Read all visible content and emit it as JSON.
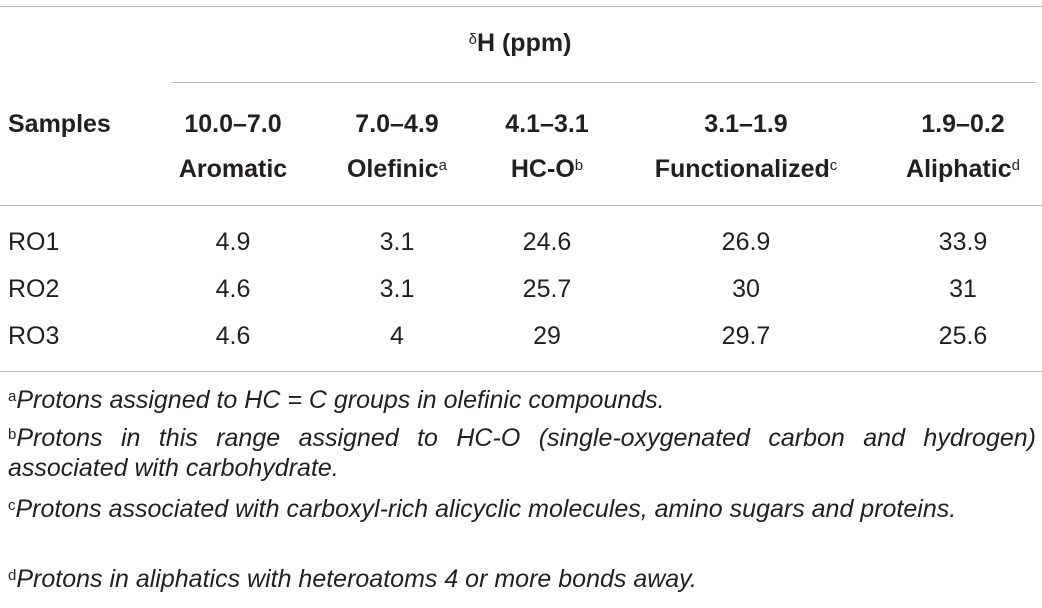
{
  "table": {
    "group_header": {
      "prefix": "δ",
      "label": "H (ppm)"
    },
    "samples_header": "Samples",
    "columns": [
      {
        "range": "10.0–7.0",
        "name": "Aromatic",
        "note": ""
      },
      {
        "range": "7.0–4.9",
        "name": "Olefinic",
        "note": "a"
      },
      {
        "range": "4.1–3.1",
        "name": "HC-O",
        "note": "b"
      },
      {
        "range": "3.1–1.9",
        "name": "Functionalized",
        "note": "c"
      },
      {
        "range": "1.9–0.2",
        "name": "Aliphatic",
        "note": "d"
      }
    ],
    "rows": [
      {
        "sample": "RO1",
        "values": [
          "4.9",
          "3.1",
          "24.6",
          "26.9",
          "33.9"
        ]
      },
      {
        "sample": "RO2",
        "values": [
          "4.6",
          "3.1",
          "25.7",
          "30",
          "31"
        ]
      },
      {
        "sample": "RO3",
        "values": [
          "4.6",
          "4",
          "29",
          "29.7",
          "25.6"
        ]
      }
    ]
  },
  "footnotes": [
    {
      "mark": "a",
      "text": "Protons assigned to HC = C groups in olefinic compounds."
    },
    {
      "mark": "b",
      "text": "Protons in this range assigned to HC-O (single-oxygenated carbon and hydrogen) associated with carbohydrate."
    },
    {
      "mark": "c",
      "text": "Protons associated with carboxyl-rich alicyclic molecules, amino sugars and proteins."
    },
    {
      "mark": "d",
      "text": "Protons in aliphatics with heteroatoms 4 or more bonds away."
    }
  ]
}
